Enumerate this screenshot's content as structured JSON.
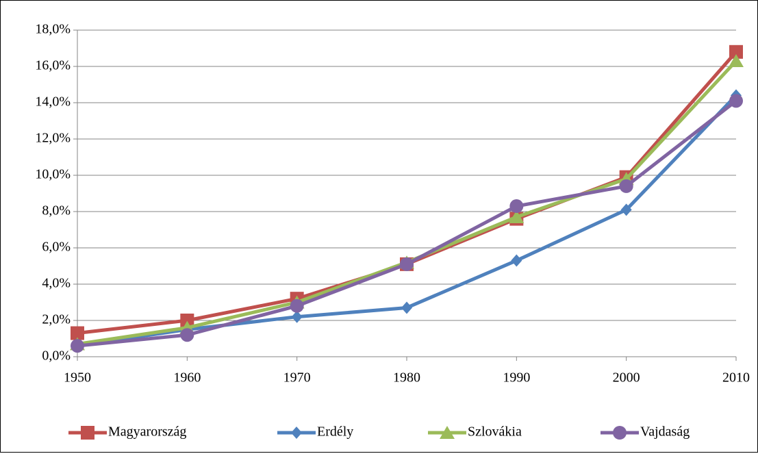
{
  "chart_data": {
    "type": "line",
    "x": [
      1950,
      1960,
      1970,
      1980,
      1990,
      2000,
      2010
    ],
    "xlim": [
      1950,
      2010
    ],
    "xticks": [
      1950,
      1960,
      1970,
      1980,
      1990,
      2000,
      2010
    ],
    "ylim": [
      0,
      18
    ],
    "yticks": [
      {
        "value": 0,
        "label": "0,0%"
      },
      {
        "value": 2,
        "label": "2,0%"
      },
      {
        "value": 4,
        "label": "4,0%"
      },
      {
        "value": 6,
        "label": "6,0%"
      },
      {
        "value": 8,
        "label": "8,0%"
      },
      {
        "value": 10,
        "label": "10,0%"
      },
      {
        "value": 12,
        "label": "12,0%"
      },
      {
        "value": 14,
        "label": "14,0%"
      },
      {
        "value": 16,
        "label": "16,0%"
      },
      {
        "value": 18,
        "label": "18,0%"
      }
    ],
    "grid": true,
    "legend": "bottom",
    "series": [
      {
        "name": "Magyarország",
        "color": "#c0504d",
        "marker": "square",
        "values": [
          1.3,
          2.0,
          3.2,
          5.1,
          7.6,
          9.9,
          16.8
        ]
      },
      {
        "name": "Erdély",
        "color": "#4f81bd",
        "marker": "diamond",
        "values": [
          0.6,
          1.5,
          2.2,
          2.7,
          5.3,
          8.1,
          14.4
        ]
      },
      {
        "name": "Szlovákia",
        "color": "#9bbb59",
        "marker": "triangle",
        "values": [
          0.7,
          1.6,
          3.0,
          5.2,
          7.7,
          9.8,
          16.3
        ]
      },
      {
        "name": "Vajdaság",
        "color": "#8064a2",
        "marker": "circle",
        "values": [
          0.6,
          1.2,
          2.8,
          5.1,
          8.3,
          9.4,
          14.1
        ]
      }
    ]
  }
}
